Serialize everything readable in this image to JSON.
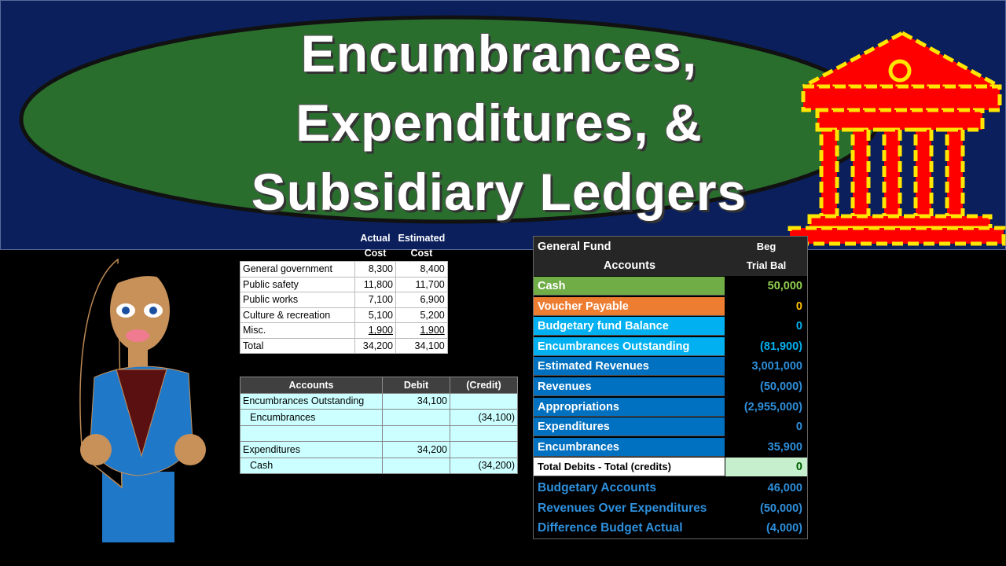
{
  "title": {
    "lines": [
      "Encumbrances,",
      "Expenditures, &",
      "Subsidiary Ledgers"
    ]
  },
  "cost_table": {
    "columns": [
      "Actual Cost",
      "Estimated Cost"
    ],
    "rows": [
      [
        "General government",
        "8,300",
        "8,400"
      ],
      [
        "Public safety",
        "11,800",
        "11,700"
      ],
      [
        "Public works",
        "7,100",
        "6,900"
      ],
      [
        "Culture & recreation",
        "5,100",
        "5,200"
      ],
      [
        "Misc.",
        "1,900",
        "1,900"
      ],
      [
        "Total",
        "34,200",
        "34,100"
      ]
    ]
  },
  "journal": {
    "columns": [
      "Accounts",
      "Debit",
      "(Credit)"
    ],
    "rows": [
      {
        "cells": [
          "Encumbrances Outstanding",
          "34,100",
          null
        ]
      },
      {
        "cells": [
          "Encumbrances",
          null,
          "(34,100)"
        ],
        "indent": true
      },
      {
        "cells": [
          null,
          null,
          null
        ]
      },
      {
        "cells": [
          "Expenditures",
          "34,200",
          null
        ]
      },
      {
        "cells": [
          "Cash",
          null,
          "(34,200)"
        ],
        "indent": true
      }
    ]
  },
  "ledger": {
    "title": "General Fund",
    "accounts_header": "Accounts",
    "balance_header": [
      "Beg",
      "Trial Bal"
    ],
    "rows": [
      {
        "account": "Cash",
        "balance": "50,000",
        "color": "#70ad47",
        "value_color": "#92d050"
      },
      {
        "account": "Voucher Payable",
        "balance": "0",
        "color": "#ed7d31",
        "value_color": "#ffc000"
      },
      {
        "account": "Budgetary fund Balance",
        "balance": "0",
        "color": "#00b0f0",
        "value_color": "#00b0f0"
      },
      {
        "account": "Encumbrances Outstanding",
        "balance": "(81,900)",
        "color": "#00b0f0",
        "value_color": "#00b0f0"
      },
      {
        "account": "Estimated Revenues",
        "balance": "3,001,000",
        "color": "#0070c0",
        "value_color": "#2e8fdb"
      },
      {
        "account": "Revenues",
        "balance": "(50,000)",
        "color": "#0070c0",
        "value_color": "#2e8fdb"
      },
      {
        "account": "Appropriations",
        "balance": "(2,955,000)",
        "color": "#0070c0",
        "value_color": "#2e8fdb"
      },
      {
        "account": "Expenditures",
        "balance": "0",
        "color": "#0070c0",
        "value_color": "#2e8fdb"
      },
      {
        "account": "Encumbrances",
        "balance": "35,900",
        "color": "#0070c0",
        "value_color": "#2e8fdb"
      }
    ],
    "total": {
      "account": "Total Debits - Total (credits)",
      "balance": "0"
    },
    "summary": [
      {
        "account": "Budgetary Accounts",
        "balance": "46,000"
      },
      {
        "account": "Revenues Over Expenditures",
        "balance": "(50,000)"
      },
      {
        "account": "Difference Budget Actual",
        "balance": "(4,000)"
      }
    ]
  }
}
